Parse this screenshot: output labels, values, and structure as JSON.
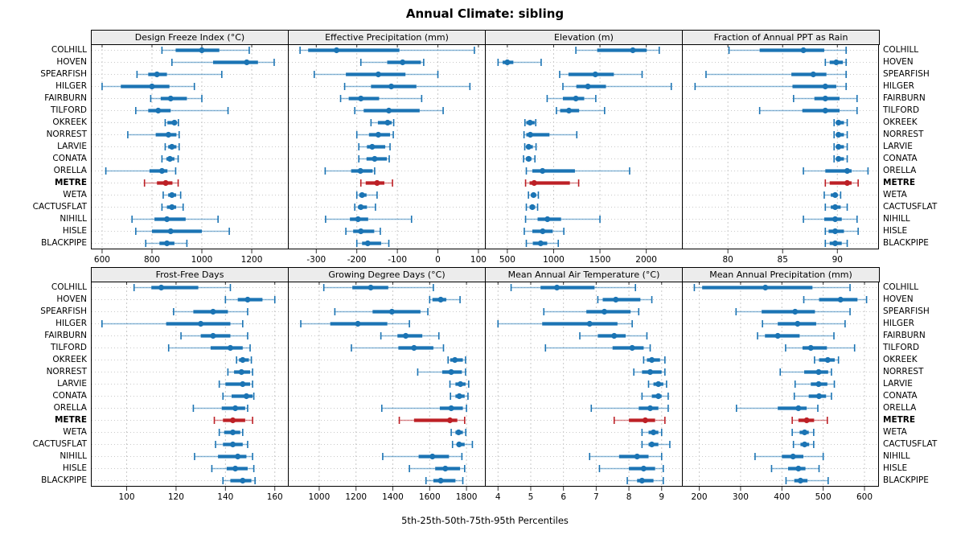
{
  "title": "Annual Climate: sibling",
  "axis_title": "5th-25th-50th-75th-95th Percentiles",
  "colors": {
    "series": "#1b74b4",
    "highlight": "#bd2026",
    "grid": "#c9c9c9",
    "header_bg": "#ececec",
    "border": "#000000",
    "tick": "#333333"
  },
  "stations": [
    "COLHILL",
    "HOVEN",
    "SPEARFISH",
    "HILGER",
    "FAIRBURN",
    "TILFORD",
    "OKREEK",
    "NORREST",
    "LARVIE",
    "CONATA",
    "ORELLA",
    "METRE",
    "WETA",
    "CACTUSFLAT",
    "NIHILL",
    "HISLE",
    "BLACKPIPE"
  ],
  "highlight_station": "METRE",
  "chart_data": {
    "type": "interval-dotplot",
    "percentile_levels": [
      5,
      25,
      50,
      75,
      95
    ],
    "legend_note": "5th-95th thin whisker with end caps, 25th-75th thick bar, dot = median",
    "panels": [
      {
        "title": "Design Freeze Index (°C)",
        "row": 0,
        "col": 0,
        "xlim": [
          555,
          1345
        ],
        "ticks": [
          600,
          800,
          1000,
          1200
        ],
        "values": [
          [
            840,
            895,
            1000,
            1070,
            1190
          ],
          [
            880,
            1045,
            1180,
            1225,
            1290
          ],
          [
            740,
            785,
            820,
            860,
            1080
          ],
          [
            600,
            675,
            800,
            870,
            970
          ],
          [
            795,
            835,
            875,
            940,
            1000
          ],
          [
            735,
            785,
            825,
            875,
            1105
          ],
          [
            853,
            862,
            890,
            898,
            906
          ],
          [
            703,
            815,
            866,
            898,
            909
          ],
          [
            853,
            865,
            880,
            898,
            909
          ],
          [
            840,
            858,
            872,
            890,
            905
          ],
          [
            615,
            790,
            840,
            862,
            895
          ],
          [
            770,
            820,
            855,
            882,
            905
          ],
          [
            845,
            865,
            880,
            897,
            915
          ],
          [
            840,
            860,
            880,
            897,
            925
          ],
          [
            720,
            810,
            860,
            935,
            1065
          ],
          [
            735,
            800,
            875,
            1000,
            1110
          ],
          [
            775,
            830,
            860,
            890,
            940
          ]
        ]
      },
      {
        "title": "Effective Precipitation (mm)",
        "row": 0,
        "col": 1,
        "xlim": [
          -370,
          116
        ],
        "ticks": [
          -300,
          -200,
          -100,
          0,
          100
        ],
        "values": [
          [
            -340,
            -320,
            -250,
            -95,
            90
          ],
          [
            -190,
            -125,
            -87,
            -42,
            -35
          ],
          [
            -305,
            -227,
            -147,
            -80,
            0
          ],
          [
            -230,
            -165,
            -115,
            -53,
            79
          ],
          [
            -240,
            -220,
            -190,
            -145,
            -40
          ],
          [
            -205,
            -183,
            -121,
            -45,
            13
          ],
          [
            -165,
            -148,
            -124,
            -114,
            -109
          ],
          [
            -200,
            -170,
            -147,
            -118,
            -110
          ],
          [
            -195,
            -175,
            -162,
            -130,
            -118
          ],
          [
            -195,
            -176,
            -156,
            -126,
            -120
          ],
          [
            -278,
            -214,
            -191,
            -161,
            -156
          ],
          [
            -190,
            -178,
            -150,
            -132,
            -112
          ],
          [
            -200,
            -194,
            -187,
            -176,
            -150
          ],
          [
            -205,
            -197,
            -190,
            -175,
            -154
          ],
          [
            -277,
            -217,
            -197,
            -172,
            -65
          ],
          [
            -227,
            -209,
            -190,
            -157,
            -142
          ],
          [
            -200,
            -187,
            -173,
            -140,
            -121
          ]
        ]
      },
      {
        "title": "Elevation (m)",
        "row": 0,
        "col": 2,
        "xlim": [
          258,
          2385
        ],
        "ticks": [
          500,
          1000,
          1500,
          2000
        ],
        "values": [
          [
            1240,
            1470,
            1855,
            2005,
            2140
          ],
          [
            400,
            450,
            500,
            565,
            865
          ],
          [
            1065,
            1160,
            1450,
            1650,
            1955
          ],
          [
            1100,
            1245,
            1370,
            1565,
            2270
          ],
          [
            930,
            1100,
            1240,
            1330,
            1455
          ],
          [
            1030,
            1070,
            1165,
            1275,
            1550
          ],
          [
            690,
            705,
            745,
            795,
            807
          ],
          [
            680,
            705,
            748,
            955,
            1250
          ],
          [
            688,
            706,
            730,
            775,
            810
          ],
          [
            675,
            700,
            730,
            760,
            798
          ],
          [
            705,
            770,
            880,
            1230,
            1820
          ],
          [
            697,
            740,
            790,
            1175,
            1270
          ],
          [
            728,
            755,
            783,
            810,
            835
          ],
          [
            705,
            740,
            770,
            800,
            827
          ],
          [
            697,
            827,
            933,
            1080,
            1500
          ],
          [
            683,
            770,
            882,
            990,
            1110
          ],
          [
            705,
            775,
            860,
            930,
            1050
          ]
        ]
      },
      {
        "title": "Fraction of Annual PPT as Rain",
        "row": 0,
        "col": 3,
        "xlim": [
          75.8,
          93.8
        ],
        "ticks": [
          80,
          85,
          90
        ],
        "values": [
          [
            80.1,
            82.9,
            86.9,
            88.8,
            90.8
          ],
          [
            88.9,
            89.3,
            89.9,
            90.5,
            90.8
          ],
          [
            78.0,
            85.8,
            87.8,
            89.0,
            90.8
          ],
          [
            77.0,
            85.9,
            88.9,
            89.9,
            90.8
          ],
          [
            86.0,
            87.9,
            88.9,
            90.2,
            91.8
          ],
          [
            82.9,
            86.8,
            88.9,
            90.2,
            91.8
          ],
          [
            89.7,
            89.9,
            90.1,
            90.6,
            90.9
          ],
          [
            89.7,
            89.9,
            90.1,
            90.6,
            90.9
          ],
          [
            89.7,
            89.9,
            90.1,
            90.6,
            90.9
          ],
          [
            89.7,
            89.9,
            90.1,
            90.6,
            90.9
          ],
          [
            86.9,
            88.9,
            90.9,
            91.3,
            92.8
          ],
          [
            88.9,
            89.3,
            90.9,
            91.3,
            91.9
          ],
          [
            88.8,
            89.4,
            89.8,
            90.0,
            90.3
          ],
          [
            88.9,
            89.4,
            89.8,
            90.3,
            90.9
          ],
          [
            86.9,
            88.8,
            89.8,
            90.4,
            91.8
          ],
          [
            88.9,
            89.2,
            89.8,
            90.6,
            91.9
          ],
          [
            88.9,
            89.3,
            89.8,
            90.4,
            90.9
          ]
        ]
      },
      {
        "title": "Frost-Free Days",
        "row": 1,
        "col": 0,
        "xlim": [
          85.5,
          165.3
        ],
        "ticks": [
          100,
          120,
          140,
          160
        ],
        "values": [
          [
            103,
            110,
            114,
            129,
            142
          ],
          [
            140,
            145,
            149,
            155,
            160
          ],
          [
            119,
            127,
            135,
            141,
            149
          ],
          [
            90,
            116,
            130,
            142,
            147
          ],
          [
            122,
            130,
            135,
            142,
            149
          ],
          [
            117,
            134,
            142,
            147,
            150
          ],
          [
            144.5,
            145.5,
            147,
            149.5,
            150.5
          ],
          [
            141,
            143.5,
            146.5,
            150,
            151
          ],
          [
            137.5,
            140,
            147,
            150,
            151
          ],
          [
            139,
            142.5,
            148.5,
            151,
            151.5
          ],
          [
            127,
            138.5,
            144,
            148,
            149
          ],
          [
            135.5,
            139,
            143,
            148,
            151
          ],
          [
            137.5,
            139.5,
            143,
            146,
            147
          ],
          [
            136,
            139,
            143,
            147,
            149
          ],
          [
            127.5,
            137,
            145,
            148.5,
            151
          ],
          [
            134.5,
            140.5,
            144,
            149,
            151.5
          ],
          [
            139,
            142,
            147,
            150.5,
            152
          ]
        ]
      },
      {
        "title": "Growing Degree Days (°C)",
        "row": 1,
        "col": 1,
        "xlim": [
          830,
          1900
        ],
        "ticks": [
          1000,
          1200,
          1400,
          1600,
          1800
        ],
        "values": [
          [
            1025,
            1180,
            1280,
            1375,
            1620
          ],
          [
            1600,
            1615,
            1660,
            1690,
            1765
          ],
          [
            1085,
            1290,
            1395,
            1550,
            1590
          ],
          [
            900,
            1060,
            1210,
            1370,
            1490
          ],
          [
            1335,
            1425,
            1470,
            1560,
            1650
          ],
          [
            1175,
            1430,
            1515,
            1620,
            1675
          ],
          [
            1700,
            1712,
            1737,
            1780,
            1795
          ],
          [
            1535,
            1668,
            1717,
            1775,
            1795
          ],
          [
            1710,
            1740,
            1767,
            1795,
            1812
          ],
          [
            1713,
            1740,
            1761,
            1790,
            1808
          ],
          [
            1340,
            1655,
            1717,
            1780,
            1800
          ],
          [
            1435,
            1515,
            1710,
            1750,
            1790
          ],
          [
            1717,
            1740,
            1757,
            1780,
            1796
          ],
          [
            1724,
            1748,
            1760,
            1790,
            1832
          ],
          [
            1345,
            1540,
            1615,
            1705,
            1775
          ],
          [
            1490,
            1630,
            1685,
            1765,
            1790
          ],
          [
            1580,
            1620,
            1660,
            1740,
            1780
          ]
        ]
      },
      {
        "title": "Mean Annual Air Temperature (°C)",
        "row": 1,
        "col": 2,
        "xlim": [
          3.6,
          9.62
        ],
        "ticks": [
          4,
          5,
          6,
          7,
          8,
          9
        ],
        "values": [
          [
            4.4,
            5.3,
            5.8,
            6.95,
            8.2
          ],
          [
            7.05,
            7.2,
            7.6,
            8.35,
            8.7
          ],
          [
            5.4,
            6.7,
            7.25,
            8.05,
            8.3
          ],
          [
            4.0,
            5.35,
            6.8,
            7.65,
            8.1
          ],
          [
            6.5,
            7.05,
            7.55,
            7.9,
            8.55
          ],
          [
            5.45,
            7.5,
            8.1,
            8.45,
            8.65
          ],
          [
            8.45,
            8.55,
            8.7,
            8.95,
            9.1
          ],
          [
            8.15,
            8.4,
            8.65,
            9.0,
            9.1
          ],
          [
            8.6,
            8.75,
            8.9,
            9.05,
            9.15
          ],
          [
            8.4,
            8.7,
            8.9,
            9.0,
            9.2
          ],
          [
            6.85,
            8.3,
            8.65,
            8.9,
            9.2
          ],
          [
            7.55,
            8.0,
            8.5,
            8.8,
            9.1
          ],
          [
            8.4,
            8.6,
            8.75,
            8.9,
            9.0
          ],
          [
            8.4,
            8.6,
            8.7,
            8.9,
            9.25
          ],
          [
            6.8,
            7.7,
            8.25,
            8.6,
            9.0
          ],
          [
            7.1,
            8.0,
            8.45,
            8.8,
            9.05
          ],
          [
            7.95,
            8.25,
            8.4,
            8.75,
            9.05
          ]
        ]
      },
      {
        "title": "Mean Annual Precipitation (mm)",
        "row": 1,
        "col": 3,
        "xlim": [
          158,
          635
        ],
        "ticks": [
          200,
          300,
          400,
          500,
          600
        ],
        "values": [
          [
            188,
            207,
            360,
            474,
            565
          ],
          [
            453,
            490,
            542,
            583,
            605
          ],
          [
            289,
            351,
            432,
            480,
            565
          ],
          [
            353,
            390,
            438,
            483,
            553
          ],
          [
            341,
            359,
            390,
            443,
            526
          ],
          [
            409,
            450,
            470,
            509,
            576
          ],
          [
            479,
            490,
            511,
            528,
            537
          ],
          [
            396,
            454,
            489,
            512,
            520
          ],
          [
            432,
            470,
            489,
            510,
            527
          ],
          [
            430,
            465,
            490,
            507,
            520
          ],
          [
            290,
            390,
            440,
            460,
            487
          ],
          [
            425,
            440,
            460,
            478,
            510
          ],
          [
            425,
            443,
            455,
            465,
            477
          ],
          [
            428,
            445,
            455,
            466,
            477
          ],
          [
            335,
            400,
            427,
            452,
            500
          ],
          [
            375,
            415,
            440,
            457,
            490
          ],
          [
            410,
            430,
            445,
            462,
            512
          ]
        ]
      }
    ]
  }
}
